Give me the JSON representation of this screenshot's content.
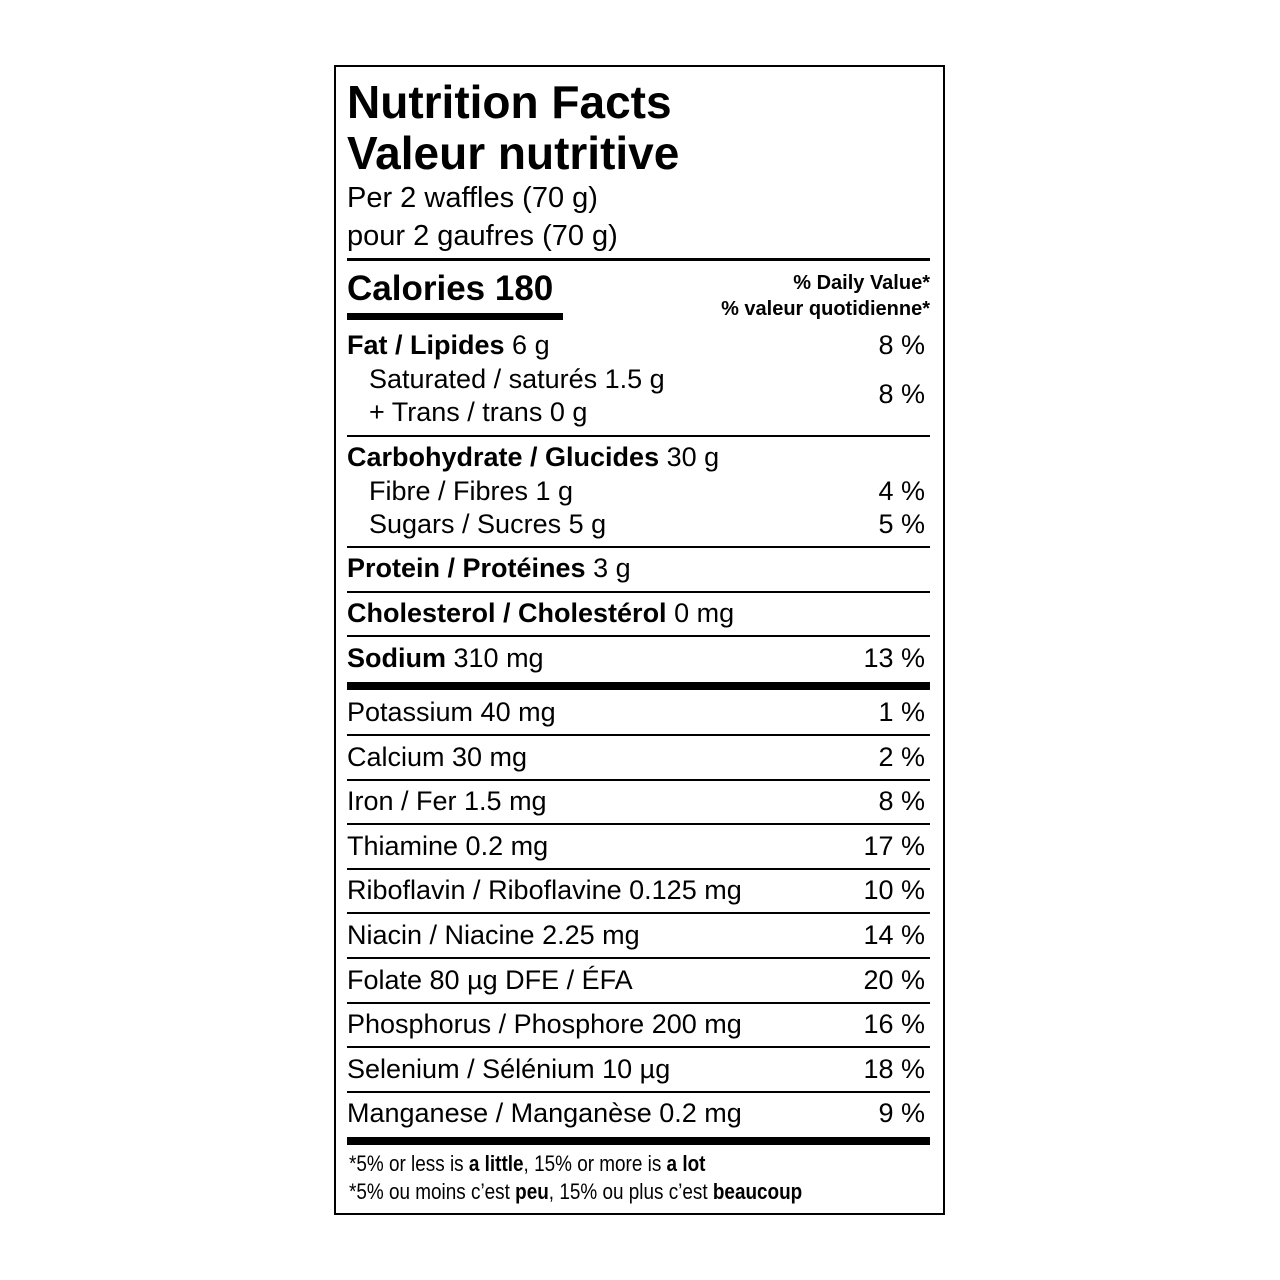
{
  "title_en": "Nutrition Facts",
  "title_fr": "Valeur nutritive",
  "serving_en": "Per 2 waffles (70 g)",
  "serving_fr": "pour 2 gaufres (70 g)",
  "calories": {
    "label": "Calories",
    "value": "180"
  },
  "daily_value_header": {
    "en": "% Daily Value*",
    "fr": "% valeur quotidienne*"
  },
  "fat": {
    "label": "Fat / Lipides",
    "amount": "6 g",
    "dv": "8 %"
  },
  "saturated": {
    "label": "Saturated / saturés 1.5 g"
  },
  "trans": {
    "label": "+ Trans / trans 0 g"
  },
  "sat_trans_dv": "8 %",
  "carbohydrate": {
    "label": "Carbohydrate / Glucides",
    "amount": "30 g"
  },
  "fibre": {
    "label": "Fibre / Fibres 1 g",
    "dv": "4 %"
  },
  "sugars": {
    "label": "Sugars / Sucres 5 g",
    "dv": "5 %"
  },
  "protein": {
    "label": "Protein / Protéines",
    "amount": "3 g"
  },
  "cholesterol": {
    "label": "Cholesterol / Cholestérol",
    "amount": "0 mg"
  },
  "sodium": {
    "label": "Sodium",
    "amount": "310 mg",
    "dv": "13 %"
  },
  "micronutrients": [
    {
      "label": "Potassium 40 mg",
      "dv": "1 %"
    },
    {
      "label": "Calcium 30 mg",
      "dv": "2 %"
    },
    {
      "label": "Iron / Fer 1.5 mg",
      "dv": "8 %"
    },
    {
      "label": "Thiamine 0.2 mg",
      "dv": "17 %"
    },
    {
      "label": "Riboflavin / Riboflavine 0.125 mg",
      "dv": "10 %"
    },
    {
      "label": "Niacin / Niacine 2.25 mg",
      "dv": "14 %"
    },
    {
      "label": "Folate 80 µg DFE / ÉFA",
      "dv": "20 %"
    },
    {
      "label": "Phosphorus / Phosphore 200 mg",
      "dv": "16 %"
    },
    {
      "label": "Selenium / Sélénium 10 µg",
      "dv": "18 %"
    },
    {
      "label": "Manganese / Manganèse 0.2 mg",
      "dv": "9 %"
    }
  ],
  "footnote_en": {
    "a": "*5% or less is ",
    "b": "a little",
    "c": ", 15% or more is ",
    "d": "a lot"
  },
  "footnote_fr": {
    "a": "*5% ou moins c’est ",
    "b": "peu",
    "c": ", 15% ou plus c’est ",
    "d": "beaucoup"
  }
}
